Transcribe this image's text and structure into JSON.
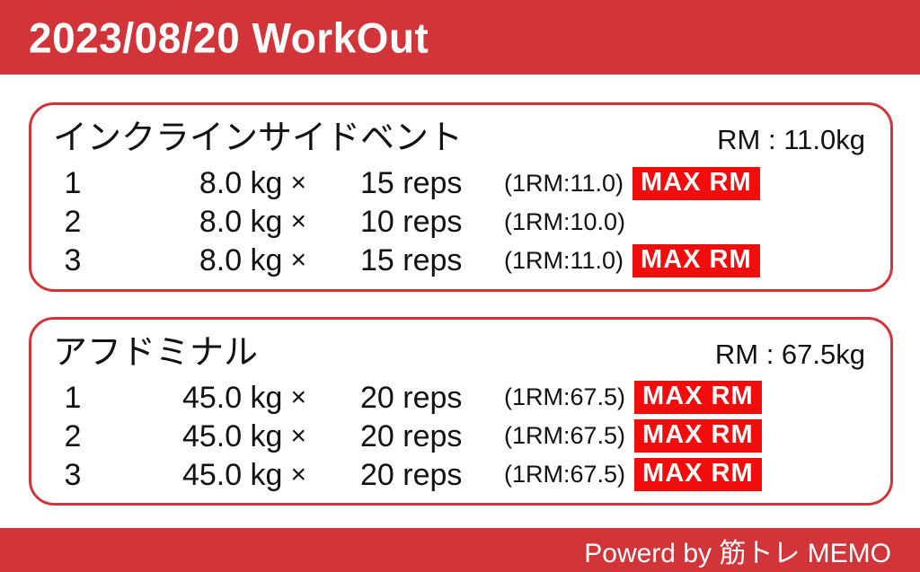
{
  "colors": {
    "primary_red": "#d23539",
    "badge_red": "#f20d0d",
    "text_black": "#111111",
    "white": "#ffffff"
  },
  "header": {
    "title": "2023/08/20 WorkOut"
  },
  "labels": {
    "times_sign": "×",
    "badge": "MAX RM"
  },
  "exercises": [
    {
      "name": "インクラインサイドベント",
      "rm": "RM : 11.0kg",
      "sets": [
        {
          "set": "1",
          "weight": "8.0 kg",
          "reps": "15 reps",
          "one_rm": "(1RM:11.0)",
          "max": true
        },
        {
          "set": "2",
          "weight": "8.0 kg",
          "reps": "10 reps",
          "one_rm": "(1RM:10.0)",
          "max": false
        },
        {
          "set": "3",
          "weight": "8.0 kg",
          "reps": "15 reps",
          "one_rm": "(1RM:11.0)",
          "max": true
        }
      ]
    },
    {
      "name": "アフドミナル",
      "rm": "RM : 67.5kg",
      "sets": [
        {
          "set": "1",
          "weight": "45.0 kg",
          "reps": "20 reps",
          "one_rm": "(1RM:67.5)",
          "max": true
        },
        {
          "set": "2",
          "weight": "45.0 kg",
          "reps": "20 reps",
          "one_rm": "(1RM:67.5)",
          "max": true
        },
        {
          "set": "3",
          "weight": "45.0 kg",
          "reps": "20 reps",
          "one_rm": "(1RM:67.5)",
          "max": true
        }
      ]
    }
  ],
  "footer": {
    "credit": "Powerd by 筋トレ MEMO"
  }
}
